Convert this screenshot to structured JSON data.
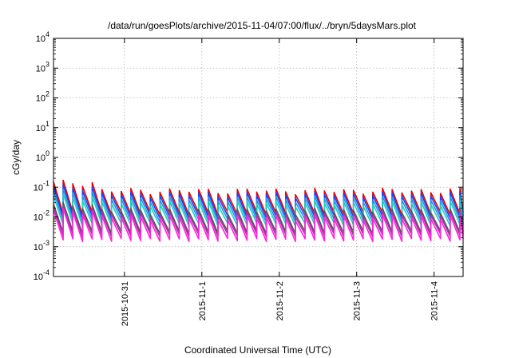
{
  "chart_data": {
    "type": "line",
    "title": "/data/run/goesPlots/archive/2015-11-04/07:00/flux/../bryn/5daysMars.plot",
    "xlabel": "Coordinated Universal Time (UTC)",
    "ylabel": "cGy/day",
    "y_scale": "log",
    "ylim": [
      0.0001,
      10000
    ],
    "xlim": [
      "2015-10-30 02:00",
      "2015-11-04 09:00"
    ],
    "grid": true,
    "legend": "none",
    "y_ticks": [
      {
        "base": "10",
        "exp": "-4",
        "value": 0.0001
      },
      {
        "base": "10",
        "exp": "-3",
        "value": 0.001
      },
      {
        "base": "10",
        "exp": "-2",
        "value": 0.01
      },
      {
        "base": "10",
        "exp": "-1",
        "value": 0.1
      },
      {
        "base": "10",
        "exp": "0",
        "value": 1
      },
      {
        "base": "10",
        "exp": "1",
        "value": 10
      },
      {
        "base": "10",
        "exp": "2",
        "value": 100
      },
      {
        "base": "10",
        "exp": "3",
        "value": 1000
      },
      {
        "base": "10",
        "exp": "4",
        "value": 10000
      }
    ],
    "x_ticks": [
      {
        "label": "2015-10-31",
        "date": "2015-10-31 00:00"
      },
      {
        "label": "2015-11-1",
        "date": "2015-11-01 00:00"
      },
      {
        "label": "2015-11-2",
        "date": "2015-11-02 00:00"
      },
      {
        "label": "2015-11-3",
        "date": "2015-11-03 00:00"
      },
      {
        "label": "2015-11-4",
        "date": "2015-11-04 00:00"
      }
    ],
    "sawtooth_period_hours": 3,
    "series": [
      {
        "color": "#ee0000",
        "peak": 0.075,
        "trough": 0.013,
        "early_peak": 0.14
      },
      {
        "color": "#1144ff",
        "peak": 0.058,
        "trough": 0.01,
        "early_peak": 0.1
      },
      {
        "color": "#2299dd",
        "peak": 0.042,
        "trough": 0.0075,
        "early_peak": 0.07
      },
      {
        "color": "#22ccbb",
        "peak": 0.03,
        "trough": 0.0055,
        "early_peak": 0.048
      },
      {
        "color": "#555555",
        "peak": 0.016,
        "trough": 0.003,
        "early_peak": 0.025
      },
      {
        "color": "#aa33aa",
        "peak": 0.013,
        "trough": 0.0024,
        "early_peak": 0.02
      },
      {
        "color": "#ff22dd",
        "peak": 0.01,
        "trough": 0.0017,
        "early_peak": 0.016
      }
    ]
  }
}
